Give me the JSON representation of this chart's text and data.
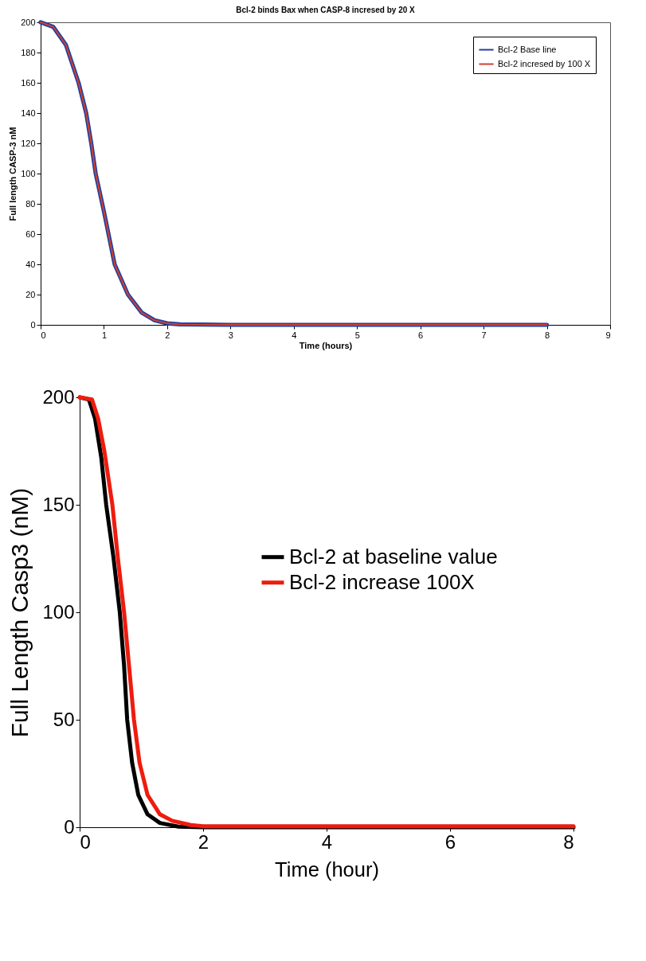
{
  "chart_data": [
    {
      "type": "line",
      "title": "Bcl-2 binds Bax when CASP-8 incresed by 20 X",
      "xlabel": "Time (hours)",
      "ylabel": "Full length CASP-3 nM",
      "x": [
        0,
        0.2,
        0.4,
        0.6,
        0.72,
        0.8,
        0.87,
        1,
        1.17,
        1.38,
        1.6,
        1.8,
        2,
        2.2,
        3,
        8
      ],
      "series": [
        {
          "name": "Bcl-2 Base line",
          "color": "#1f3f9f",
          "values": [
            200,
            197,
            185,
            160,
            140,
            120,
            100,
            75,
            40,
            20,
            8,
            3,
            1,
            0.3,
            0,
            0
          ]
        },
        {
          "name": "Bcl-2 incresed by 100 X",
          "color": "#d04030",
          "values": [
            200,
            197,
            185,
            160,
            140,
            120,
            100,
            75,
            40,
            20,
            8,
            3,
            1,
            0.3,
            0,
            0
          ]
        }
      ],
      "xlim": [
        0,
        9
      ],
      "xticks": [
        0,
        1,
        2,
        3,
        4,
        5,
        6,
        7,
        8,
        9
      ],
      "ylim": [
        0,
        200
      ],
      "yticks": [
        0,
        20,
        40,
        60,
        80,
        100,
        120,
        140,
        160,
        180,
        200
      ],
      "legend": "top right"
    },
    {
      "type": "line",
      "xlabel": "Time (hour)",
      "ylabel": "Full Length Casp3 (nM)",
      "series": [
        {
          "name": "Bcl-2 at baseline value",
          "color": "#000000",
          "x": [
            0,
            0.15,
            0.25,
            0.35,
            0.43,
            0.55,
            0.65,
            0.72,
            0.77,
            0.85,
            0.95,
            1.1,
            1.3,
            1.6,
            2,
            8
          ],
          "values": [
            200,
            199,
            190,
            172,
            150,
            125,
            100,
            75,
            50,
            30,
            15,
            6,
            2,
            0.3,
            0,
            0
          ]
        },
        {
          "name": "Bcl-2 increase 100X",
          "color": "#ee1c0e",
          "x": [
            0,
            0.2,
            0.3,
            0.4,
            0.53,
            0.62,
            0.72,
            0.8,
            0.88,
            0.97,
            1.1,
            1.3,
            1.5,
            1.8,
            2,
            8
          ],
          "values": [
            200,
            199,
            190,
            175,
            150,
            125,
            100,
            75,
            50,
            30,
            15,
            6,
            3,
            1,
            0.5,
            0.5
          ]
        }
      ],
      "xlim": [
        0,
        8
      ],
      "xticks": [
        0,
        2,
        4,
        6,
        8
      ],
      "ylim": [
        0,
        200
      ],
      "yticks": [
        0,
        50,
        100,
        150,
        200
      ],
      "legend": "right"
    }
  ]
}
